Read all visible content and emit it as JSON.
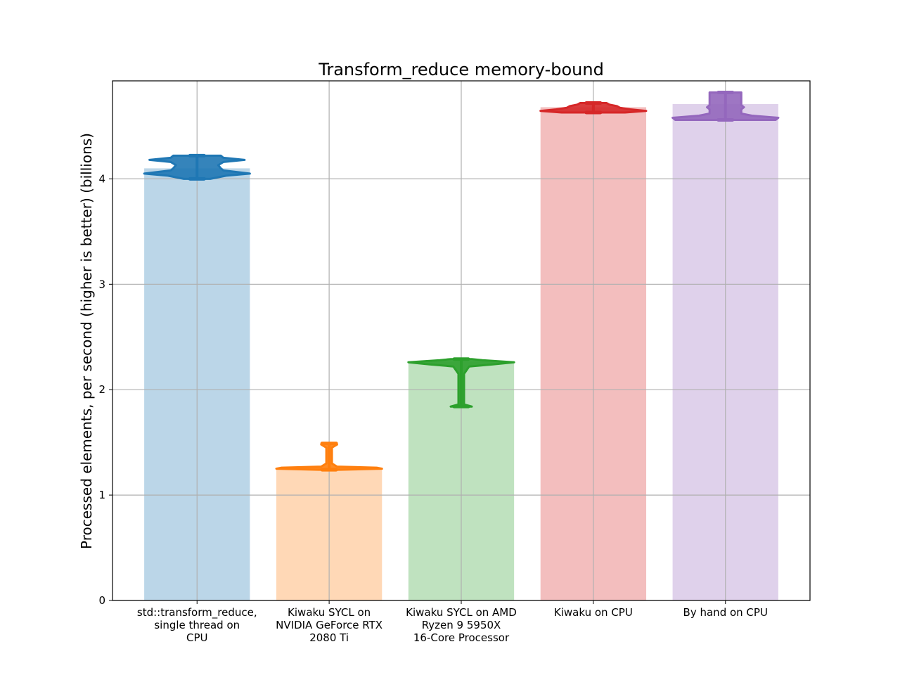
{
  "chart_data": {
    "type": "bar",
    "title": "Transform_reduce memory-bound",
    "xlabel": "",
    "ylabel": "Processed elements, per second (higher is better) (billions)",
    "ylim": [
      0,
      4.93
    ],
    "yticks": [
      0,
      1,
      2,
      3,
      4
    ],
    "grid": true,
    "categories": [
      [
        "std::transform_reduce,",
        "single thread on",
        "CPU"
      ],
      [
        "Kiwaku SYCL on",
        "NVIDIA GeForce RTX",
        "2080 Ti"
      ],
      [
        "Kiwaku SYCL on AMD",
        "Ryzen 9 5950X",
        "16-Core Processor"
      ],
      [
        "Kiwaku on CPU"
      ],
      [
        "By hand on CPU"
      ]
    ],
    "values": [
      4.1,
      1.26,
      2.27,
      4.68,
      4.71
    ],
    "colors": [
      "#1f77b4",
      "#ff7f0e",
      "#2ca02c",
      "#d62728",
      "#9467bd"
    ],
    "violins": [
      {
        "min": 4.0,
        "max": 4.22,
        "profile": [
          [
            4.0,
            0.25
          ],
          [
            4.03,
            0.55
          ],
          [
            4.05,
            1.0
          ],
          [
            4.08,
            0.5
          ],
          [
            4.1,
            0.45
          ],
          [
            4.13,
            0.4
          ],
          [
            4.16,
            0.5
          ],
          [
            4.18,
            0.9
          ],
          [
            4.2,
            0.5
          ],
          [
            4.22,
            0.45
          ]
        ]
      },
      {
        "min": 1.24,
        "max": 1.49,
        "profile": [
          [
            1.24,
            0.2
          ],
          [
            1.25,
            1.0
          ],
          [
            1.26,
            0.9
          ],
          [
            1.27,
            0.15
          ],
          [
            1.3,
            0.05
          ],
          [
            1.35,
            0.05
          ],
          [
            1.4,
            0.05
          ],
          [
            1.45,
            0.05
          ],
          [
            1.48,
            0.15
          ],
          [
            1.49,
            0.1
          ]
        ]
      },
      {
        "min": 1.84,
        "max": 2.29,
        "profile": [
          [
            1.84,
            0.2
          ],
          [
            1.86,
            0.05
          ],
          [
            1.95,
            0.04
          ],
          [
            2.05,
            0.04
          ],
          [
            2.15,
            0.05
          ],
          [
            2.22,
            0.15
          ],
          [
            2.24,
            0.6
          ],
          [
            2.26,
            1.0
          ],
          [
            2.28,
            0.4
          ],
          [
            2.29,
            0.2
          ]
        ]
      },
      {
        "min": 4.63,
        "max": 4.72,
        "profile": [
          [
            4.63,
            0.6
          ],
          [
            4.645,
            1.0
          ],
          [
            4.66,
            0.7
          ],
          [
            4.675,
            0.5
          ],
          [
            4.69,
            0.45
          ],
          [
            4.705,
            0.3
          ],
          [
            4.72,
            0.25
          ]
        ]
      },
      {
        "min": 4.56,
        "max": 4.82,
        "profile": [
          [
            4.56,
            0.95
          ],
          [
            4.58,
            1.0
          ],
          [
            4.6,
            0.5
          ],
          [
            4.62,
            0.3
          ],
          [
            4.64,
            0.3
          ],
          [
            4.66,
            0.3
          ],
          [
            4.68,
            0.35
          ],
          [
            4.7,
            0.3
          ],
          [
            4.72,
            0.3
          ],
          [
            4.74,
            0.3
          ],
          [
            4.77,
            0.3
          ],
          [
            4.8,
            0.3
          ],
          [
            4.82,
            0.3
          ]
        ]
      }
    ]
  }
}
